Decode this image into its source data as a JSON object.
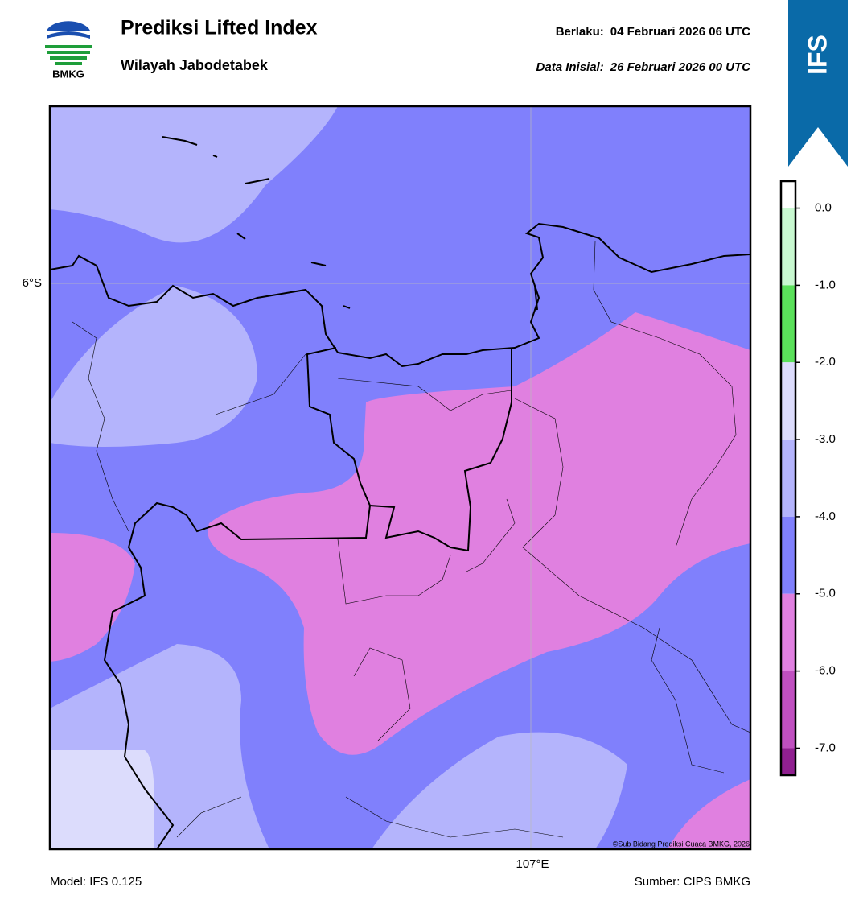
{
  "header": {
    "title": "Prediksi Lifted Index",
    "subtitle": "Wilayah Jabodetabek",
    "valid_label": "Berlaku:",
    "valid": "04 Februari 2026 06 UTC",
    "init_label": "Data Inisial:",
    "init": "26 Februari 2026 00 UTC",
    "logo": "BMKG",
    "badge": "IFS"
  },
  "map": {
    "lat_label": "6°S",
    "lon_label": "107°E",
    "copyright": "©Sub Bidang Prediksi Cuaca BMKG, 2026"
  },
  "colorbar": {
    "ylim": [
      -7.35,
      0.35
    ],
    "yticks": [
      {
        "value": 0,
        "label": "0.0"
      },
      {
        "value": -1,
        "label": "-1.0"
      },
      {
        "value": -2,
        "label": "-2.0"
      },
      {
        "value": -3,
        "label": "-3.0"
      },
      {
        "value": -4,
        "label": "-4.0"
      },
      {
        "value": -5,
        "label": "-5.0"
      },
      {
        "value": -6,
        "label": "-6.0"
      },
      {
        "value": -7,
        "label": "-7.0"
      }
    ],
    "colors": [
      "#ffffff",
      "#c8f8d0",
      "#5ae05a",
      "#dcdcfc",
      "#b4b4fc",
      "#8080fc",
      "#e080e0",
      "#c050c0",
      "#902090"
    ]
  },
  "footer": {
    "model": "Model: IFS 0.125",
    "source": "Sumber: CIPS BMKG"
  }
}
